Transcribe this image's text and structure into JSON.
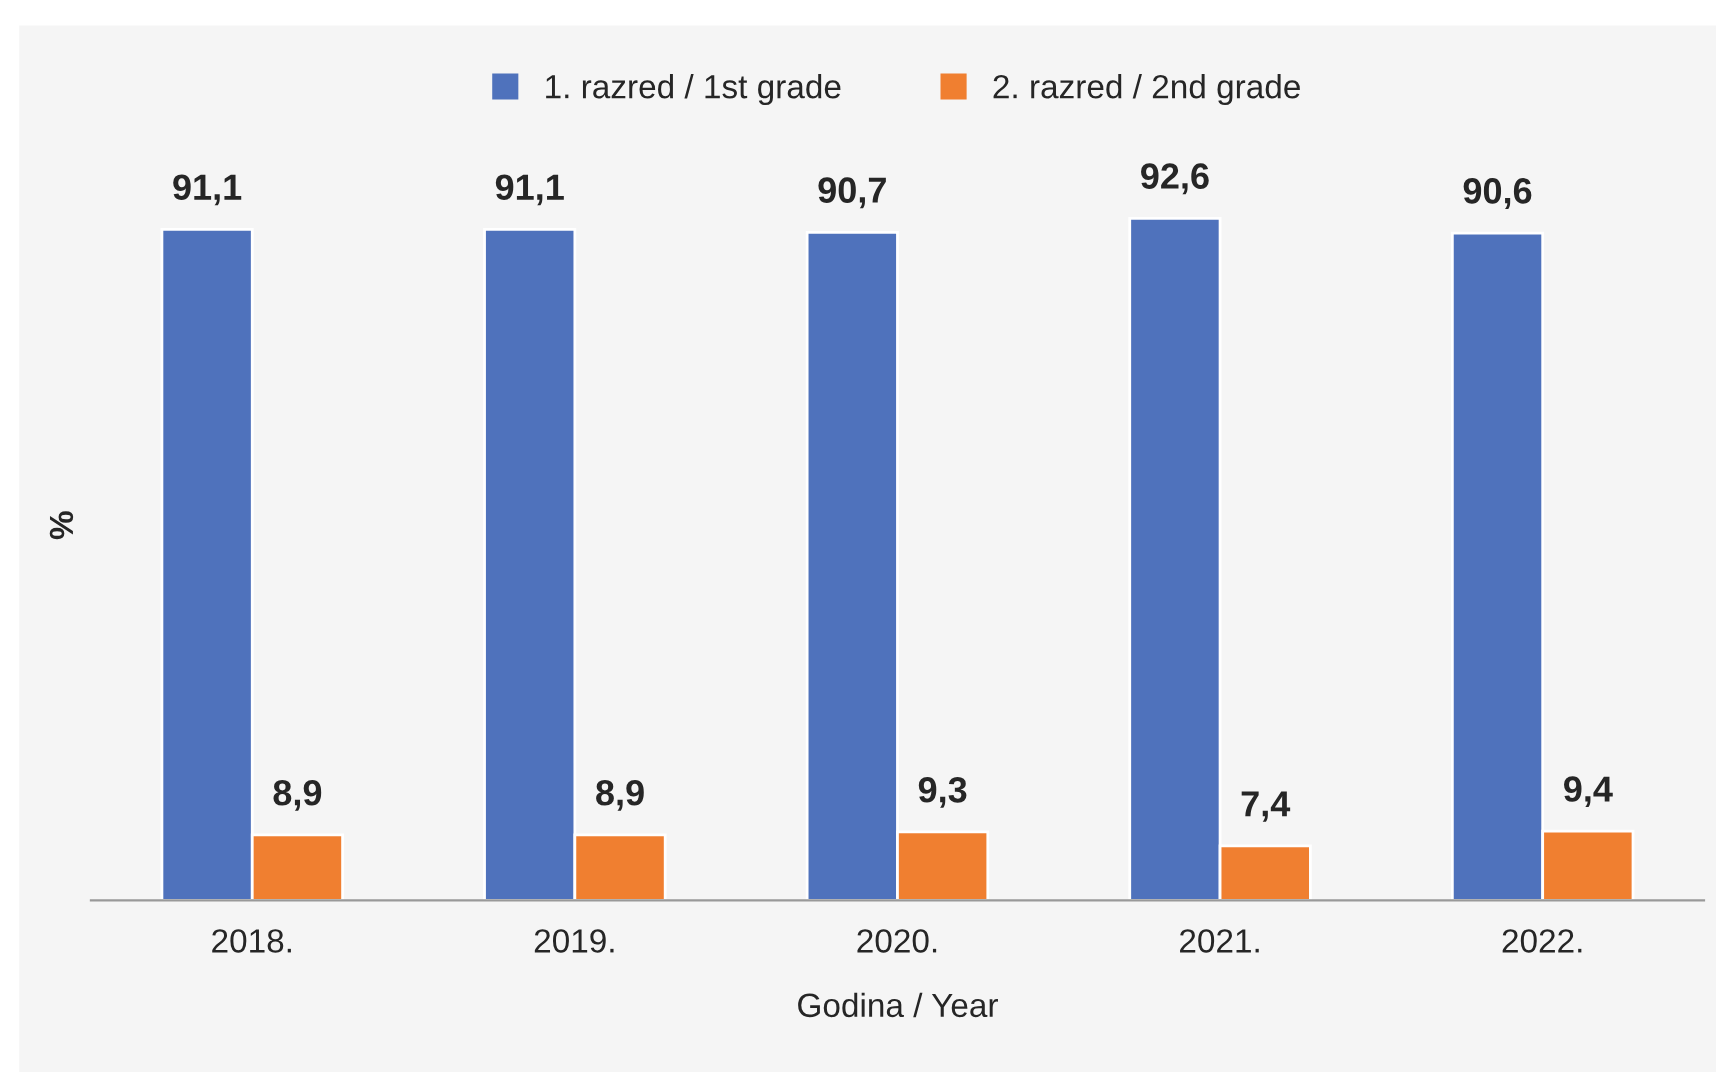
{
  "chart_data": {
    "type": "bar",
    "ylabel": "%",
    "xlabel": "Godina / Year",
    "categories": [
      "2018.",
      "2019.",
      "2020.",
      "2021.",
      "2022."
    ],
    "series": [
      {
        "name": "1. razred / 1st grade",
        "color": "#4f72bc",
        "values": [
          91.1,
          91.1,
          90.7,
          92.6,
          90.6
        ],
        "value_labels": [
          "91,1",
          "91,1",
          "90,7",
          "92,6",
          "90,6"
        ]
      },
      {
        "name": "2. razred / 2nd grade",
        "color": "#f07f30",
        "values": [
          8.9,
          8.9,
          9.3,
          7.4,
          9.4
        ],
        "value_labels": [
          "8,9",
          "8,9",
          "9,3",
          "7,4",
          "9,4"
        ]
      }
    ],
    "legend": "top",
    "grid": false
  }
}
